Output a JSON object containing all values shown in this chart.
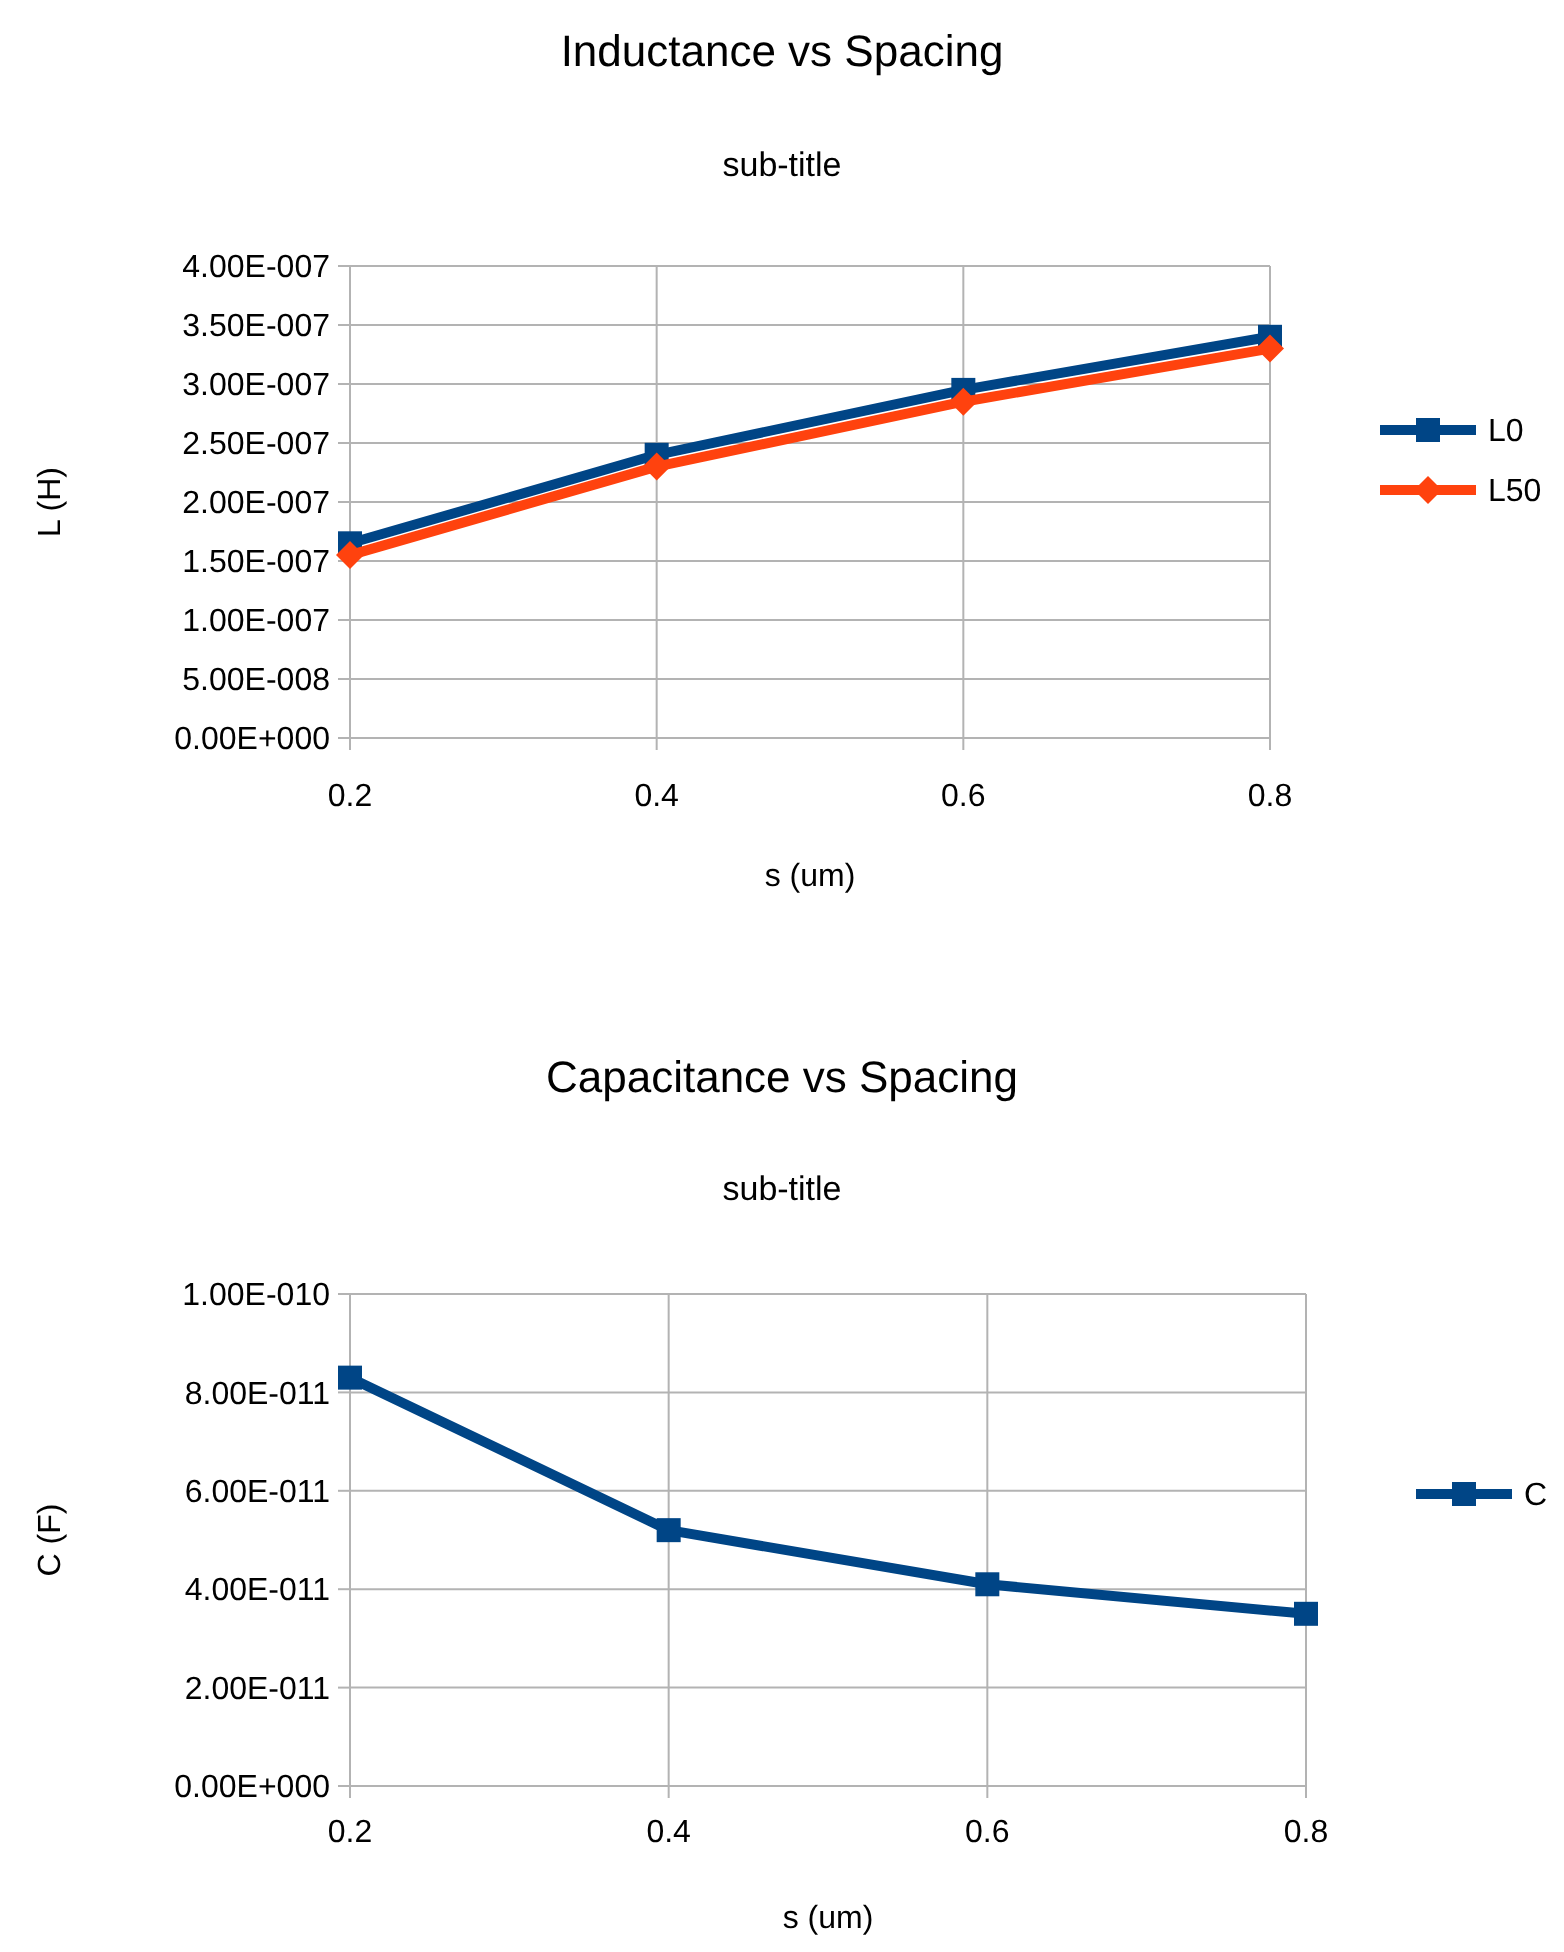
{
  "chart_data": [
    {
      "type": "line",
      "title": "Inductance vs Spacing",
      "subtitle": "sub-title",
      "xlabel": "s (um)",
      "ylabel": "L (H)",
      "x": [
        0.2,
        0.4,
        0.6,
        0.8
      ],
      "xlim": [
        0.2,
        0.8
      ],
      "xticks": [
        0.2,
        0.4,
        0.6,
        0.8
      ],
      "ylim": [
        0,
        4e-07
      ],
      "yticks": [
        {
          "value": 0,
          "label": "0.00E+000"
        },
        {
          "value": 5e-08,
          "label": "5.00E-008"
        },
        {
          "value": 1e-07,
          "label": "1.00E-007"
        },
        {
          "value": 1.5e-07,
          "label": "1.50E-007"
        },
        {
          "value": 2e-07,
          "label": "2.00E-007"
        },
        {
          "value": 2.5e-07,
          "label": "2.50E-007"
        },
        {
          "value": 3e-07,
          "label": "3.00E-007"
        },
        {
          "value": 3.5e-07,
          "label": "3.50E-007"
        },
        {
          "value": 4e-07,
          "label": "4.00E-007"
        }
      ],
      "grid": true,
      "legend": "right",
      "series": [
        {
          "name": "L0",
          "color": "#004586",
          "marker": "square",
          "values": [
            1.65e-07,
            2.4e-07,
            2.95e-07,
            3.4e-07
          ]
        },
        {
          "name": "L50",
          "color": "#ff420e",
          "marker": "diamond",
          "values": [
            1.55e-07,
            2.3e-07,
            2.85e-07,
            3.3e-07
          ]
        }
      ]
    },
    {
      "type": "line",
      "title": "Capacitance vs Spacing",
      "subtitle": "sub-title",
      "xlabel": "s (um)",
      "ylabel": "C (F)",
      "x": [
        0.2,
        0.4,
        0.6,
        0.8
      ],
      "xlim": [
        0.2,
        0.8
      ],
      "xticks": [
        0.2,
        0.4,
        0.6,
        0.8
      ],
      "ylim": [
        0,
        1e-10
      ],
      "yticks": [
        {
          "value": 0,
          "label": "0.00E+000"
        },
        {
          "value": 2e-11,
          "label": "2.00E-011"
        },
        {
          "value": 4e-11,
          "label": "4.00E-011"
        },
        {
          "value": 6e-11,
          "label": "6.00E-011"
        },
        {
          "value": 8e-11,
          "label": "8.00E-011"
        },
        {
          "value": 1e-10,
          "label": "1.00E-010"
        }
      ],
      "grid": true,
      "legend": "right",
      "series": [
        {
          "name": "C",
          "color": "#004586",
          "marker": "square",
          "values": [
            8.3e-11,
            5.2e-11,
            4.1e-11,
            3.5e-11
          ]
        }
      ]
    }
  ]
}
